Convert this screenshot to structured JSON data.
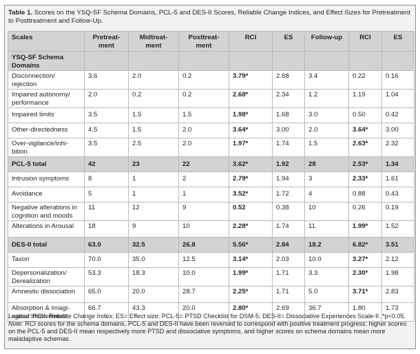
{
  "caption": {
    "label": "Table 1.",
    "text": "Scores on the YSQ-SF Schema Domains, PCL-5 and DES-II Scores, Reliable Change Indices, and Effect Sizes for Pretreatment to Posttreatment and Follow-Up."
  },
  "headers": [
    "Scales",
    "Pretreat-ment",
    "Midtreat-ment",
    "Posttreat-ment",
    "RCI",
    "ES",
    "Follow-up",
    "RCI",
    "ES"
  ],
  "sections": [
    {
      "title": "YSQ-SF Schema Domains",
      "summary": null,
      "rows": [
        {
          "label": "Disconnection/ rejection",
          "values": [
            "3.6",
            "2.0",
            "0.2",
            "3.79*",
            "2.68",
            "3.4",
            "0.22",
            "0.16"
          ],
          "bold": [
            false,
            false,
            false,
            true,
            false,
            false,
            false,
            false
          ]
        },
        {
          "label": "Impaired autonomy/ performance",
          "values": [
            "2.0",
            "0.2",
            "0.2",
            "2.68*",
            "2.34",
            "1.2",
            "1.19",
            "1.04"
          ],
          "bold": [
            false,
            false,
            false,
            true,
            false,
            false,
            false,
            false
          ]
        },
        {
          "label": "Impaired limits",
          "values": [
            "3.5",
            "1.5",
            "1.5",
            "1.98*",
            "1.68",
            "3.0",
            "0.50",
            "0.42"
          ],
          "bold": [
            false,
            false,
            false,
            true,
            false,
            false,
            false,
            false
          ]
        },
        {
          "label": "Other-directedness",
          "values": [
            "4.5",
            "1.5",
            "2.0",
            "3.64*",
            "3.00",
            "2.0",
            "3.64*",
            "3.00"
          ],
          "bold": [
            false,
            false,
            false,
            true,
            false,
            false,
            true,
            false
          ]
        },
        {
          "label": "Over-vigilance/inhi-bition",
          "values": [
            "3.5",
            "2.5",
            "2.0",
            "1.97*",
            "1.74",
            "1.5",
            "2.63*",
            "2.32"
          ],
          "bold": [
            false,
            false,
            false,
            true,
            false,
            false,
            true,
            false
          ]
        }
      ]
    },
    {
      "title": "PCL-5 total",
      "summary": [
        "42",
        "23",
        "22",
        "3.62*",
        "1.92",
        "28",
        "2.53*",
        "1.34"
      ],
      "rows": [
        {
          "label": "Intrusion symptoms",
          "values": [
            "8",
            "1",
            "2",
            "2.79*",
            "1.94",
            "3",
            "2.33*",
            "1.61"
          ],
          "bold": [
            false,
            false,
            false,
            true,
            false,
            false,
            true,
            false
          ]
        },
        {
          "label": "Avoidance",
          "values": [
            "5",
            "1",
            "1",
            "3.52*",
            "1.72",
            "4",
            "0.88",
            "0.43"
          ],
          "bold": [
            false,
            false,
            false,
            true,
            false,
            false,
            false,
            false
          ]
        },
        {
          "label": "Negative alterations in cognition and moods",
          "values": [
            "11",
            "12",
            "9",
            "0.52",
            "0.38",
            "10",
            "0.26",
            "0.19"
          ],
          "bold": [
            false,
            false,
            false,
            true,
            false,
            false,
            false,
            false
          ]
        },
        {
          "label": "Alterations in Arousal",
          "values": [
            "18",
            "9",
            "10",
            "2.28*",
            "1.74",
            "11",
            "1.99*",
            "1.52"
          ],
          "bold": [
            false,
            false,
            false,
            true,
            false,
            false,
            true,
            false
          ]
        }
      ]
    },
    {
      "title": "DES-II total",
      "summary": [
        "63.0",
        "32.5",
        "26.8",
        "5.56*",
        "2.84",
        "18.2",
        "6.82*",
        "3.51"
      ],
      "rows": [
        {
          "label": "Taxon",
          "values": [
            "70.0",
            "35.0",
            "12.5",
            "3.14*",
            "2.03",
            "10.0",
            "3.27*",
            "2.12"
          ],
          "bold": [
            false,
            false,
            false,
            true,
            false,
            false,
            true,
            false
          ]
        },
        {
          "label": "Depersonalization/ Derealization",
          "values": [
            "53.3",
            "18.3",
            "10.0",
            "1.99*",
            "1.71",
            "3.3",
            "2.30*",
            "1.98"
          ],
          "bold": [
            false,
            false,
            false,
            true,
            false,
            false,
            true,
            false
          ]
        },
        {
          "label": "Amnestic dissociation",
          "values": [
            "65.0",
            "20.0",
            "28.7",
            "2.25*",
            "1.71",
            "5.0",
            "3.71*",
            "2.83"
          ],
          "bold": [
            false,
            false,
            false,
            true,
            false,
            false,
            true,
            false
          ]
        },
        {
          "label": "Absorption & Imagi-native Involvement",
          "values": [
            "66.7",
            "43.3",
            "20.0",
            "2.80*",
            "2.69",
            "36.7",
            "1.80",
            "1.73"
          ],
          "bold": [
            false,
            false,
            false,
            true,
            false,
            false,
            false,
            false
          ]
        }
      ]
    }
  ],
  "footer": {
    "legend_label": "Legend:",
    "legend_text": " RCI= Reliable Change Index; ES= Effect size; PCL-5= PTSD Checklist for DSM-5; DES-II= Dissociative Experiences Scale-II. *p<0.05.",
    "note_label": "Note:",
    "note_text": " RCI scores for the schema domains, PCL-5 and DES-II have been reversed to correspond with positive treatment progress; higher scores on the PCL-5 and DES-II mean respectively more PTSD and dissociative symptoms, and higher scores on schema domains mean more maladaptive schemas."
  }
}
